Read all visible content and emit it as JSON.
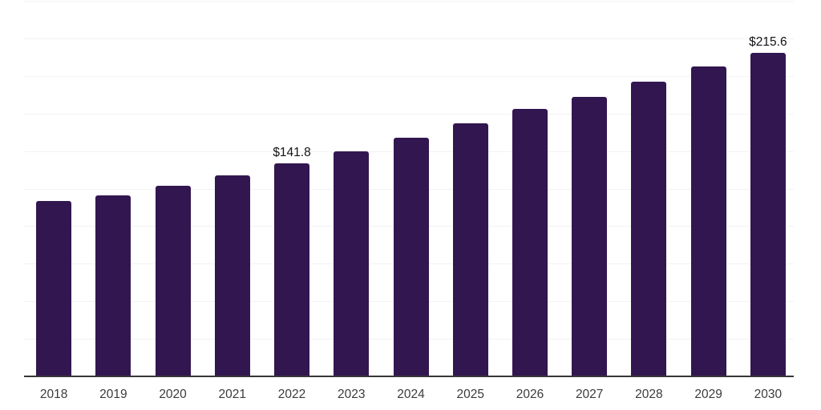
{
  "chart_data": {
    "type": "bar",
    "title": "",
    "xlabel": "",
    "ylabel": "",
    "categories": [
      "2018",
      "2019",
      "2020",
      "2021",
      "2022",
      "2023",
      "2024",
      "2025",
      "2026",
      "2027",
      "2028",
      "2029",
      "2030"
    ],
    "values": [
      116.7,
      120.5,
      126.8,
      133.7,
      141.8,
      149.8,
      158.8,
      168.5,
      178.0,
      186.0,
      196.2,
      206.3,
      215.6
    ],
    "data_labels": {
      "2022": "$141.8",
      "2030": "$215.6"
    },
    "value_prefix": "$",
    "ylim": [
      0,
      250
    ],
    "grid_step": 25,
    "grid": "horizontal",
    "legend": false,
    "y_axis_labels_visible": false,
    "colors": {
      "bar": "#321650",
      "gridline": "#f2f2f3",
      "axis_line": "#37373a",
      "tick_label": "#3b3b3d",
      "data_label": "#131316"
    }
  }
}
